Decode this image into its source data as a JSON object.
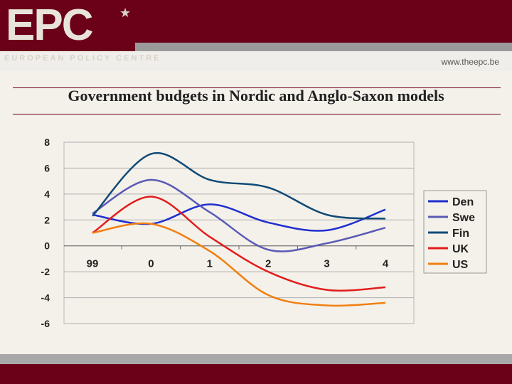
{
  "header": {
    "logo_text": "EPC",
    "logo_subtitle": "EUROPEAN POLICY CENTRE",
    "url": "www.theepc.be"
  },
  "slide_title": "Government budgets in Nordic and Anglo-Saxon models",
  "colors": {
    "brand": "#6b0019",
    "grey": "#9a9a9a"
  },
  "chart_data": {
    "type": "line",
    "title": "",
    "xlabel": "",
    "ylabel": "",
    "x": [
      "99",
      "0",
      "1",
      "2",
      "3",
      "4"
    ],
    "ylim": [
      -6,
      8
    ],
    "yticks": [
      "8",
      "6",
      "4",
      "2",
      "0",
      "-2",
      "-4",
      "-6"
    ],
    "grid": true,
    "legend_position": "right",
    "series": [
      {
        "name": "Den",
        "color": "#1f2fd0",
        "values": [
          2.4,
          1.7,
          3.2,
          1.8,
          1.2,
          2.8
        ]
      },
      {
        "name": "Swe",
        "color": "#5a5ab4",
        "values": [
          2.5,
          5.1,
          2.6,
          -0.3,
          0.2,
          1.4
        ]
      },
      {
        "name": "Fin",
        "color": "#104a78",
        "values": [
          2.3,
          7.1,
          5.1,
          4.5,
          2.4,
          2.1
        ]
      },
      {
        "name": "UK",
        "color": "#e21c1c",
        "values": [
          1.0,
          3.8,
          0.7,
          -2.0,
          -3.4,
          -3.2
        ]
      },
      {
        "name": "US",
        "color": "#f07f10",
        "values": [
          1.0,
          1.7,
          -0.4,
          -3.8,
          -4.6,
          -4.4
        ]
      }
    ]
  }
}
